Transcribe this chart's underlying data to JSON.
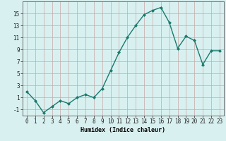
{
  "x": [
    0,
    1,
    2,
    3,
    4,
    5,
    6,
    7,
    8,
    9,
    10,
    11,
    12,
    13,
    14,
    15,
    16,
    17,
    18,
    19,
    20,
    21,
    22,
    23
  ],
  "y": [
    2,
    0.5,
    -1.5,
    -0.5,
    0.5,
    0.0,
    1.0,
    1.5,
    1.0,
    2.5,
    5.5,
    8.5,
    11.0,
    13.0,
    14.8,
    15.5,
    16.0,
    13.5,
    9.2,
    11.2,
    10.5,
    6.5,
    8.8,
    8.8
  ],
  "line_color": "#1a7a6e",
  "marker": "D",
  "marker_size": 2.0,
  "bg_color": "#d9f0f0",
  "grid_color_major": "#c8a8a8",
  "grid_color_minor": "#ddc8c8",
  "xlabel": "Humidex (Indice chaleur)",
  "ylabel": "",
  "ylim": [
    -2,
    17
  ],
  "xlim": [
    -0.5,
    23.5
  ],
  "yticks": [
    -1,
    1,
    3,
    5,
    7,
    9,
    11,
    13,
    15
  ],
  "xticks": [
    0,
    1,
    2,
    3,
    4,
    5,
    6,
    7,
    8,
    9,
    10,
    11,
    12,
    13,
    14,
    15,
    16,
    17,
    18,
    19,
    20,
    21,
    22,
    23
  ],
  "xlabel_fontsize": 6.0,
  "tick_fontsize": 5.5,
  "line_width": 1.0
}
